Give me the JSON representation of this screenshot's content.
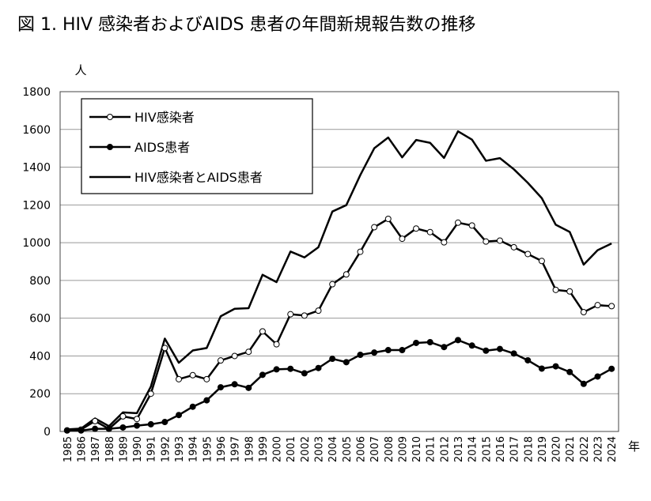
{
  "chart_data": {
    "type": "line",
    "title": "図 1. HIV 感染者およびAIDS 患者の年間新規報告数の推移",
    "y_unit": "人",
    "x_unit": "年",
    "categories": [
      "1985",
      "1986",
      "1987",
      "1988",
      "1989",
      "1990",
      "1991",
      "1992",
      "1993",
      "1994",
      "1995",
      "1996",
      "1997",
      "1998",
      "1999",
      "2000",
      "2001",
      "2002",
      "2003",
      "2004",
      "2005",
      "2006",
      "2007",
      "2008",
      "2009",
      "2010",
      "2011",
      "2012",
      "2013",
      "2014",
      "2015",
      "2016",
      "2017",
      "2018",
      "2019",
      "2020",
      "2021",
      "2022",
      "2023",
      "2024"
    ],
    "series": [
      {
        "name": "HIV感染者",
        "color": "#000000",
        "marker": "open",
        "values": [
          5,
          10,
          55,
          14,
          80,
          66,
          200,
          442,
          277,
          298,
          277,
          376,
          400,
          422,
          530,
          462,
          621,
          614,
          640,
          780,
          832,
          952,
          1082,
          1126,
          1021,
          1075,
          1056,
          1002,
          1106,
          1091,
          1006,
          1011,
          976,
          940,
          903,
          750,
          742,
          632,
          669,
          664
        ]
      },
      {
        "name": "AIDS患者",
        "color": "#000000",
        "marker": "filled",
        "values": [
          6,
          5,
          14,
          14,
          21,
          31,
          38,
          50,
          87,
          131,
          165,
          234,
          250,
          231,
          300,
          329,
          332,
          308,
          336,
          385,
          367,
          406,
          418,
          431,
          431,
          469,
          473,
          447,
          484,
          455,
          428,
          437,
          413,
          377,
          333,
          345,
          315,
          252,
          291,
          332
        ]
      },
      {
        "name": "HIV感染者とAIDS患者",
        "color": "#000000",
        "marker": "none",
        "values": [
          11,
          15,
          69,
          28,
          101,
          97,
          238,
          492,
          364,
          429,
          442,
          610,
          650,
          653,
          830,
          791,
          953,
          922,
          976,
          1165,
          1199,
          1358,
          1500,
          1557,
          1452,
          1544,
          1529,
          1449,
          1590,
          1546,
          1434,
          1448,
          1389,
          1317,
          1236,
          1095,
          1057,
          884,
          960,
          996
        ]
      }
    ],
    "ylim": [
      0,
      1800
    ],
    "yticks": [
      0,
      200,
      400,
      600,
      800,
      1000,
      1200,
      1400,
      1600,
      1800
    ],
    "grid": true
  }
}
